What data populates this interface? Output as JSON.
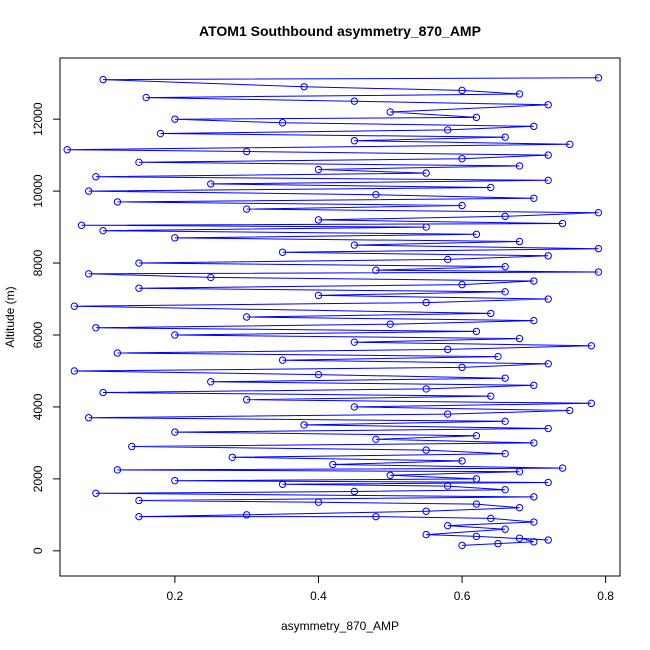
{
  "chart_data": {
    "type": "line",
    "title": "ATOM1 Southbound asymmetry_870_AMP",
    "xlabel": "asymmetry_870_AMP",
    "ylabel": "Altitude (m)",
    "xlim": [
      0.04,
      0.82
    ],
    "ylim": [
      -700,
      13700
    ],
    "xticks": [
      0.2,
      0.4,
      0.6,
      0.8
    ],
    "yticks": [
      0,
      2000,
      4000,
      6000,
      8000,
      10000,
      12000
    ],
    "grid": false,
    "legend": "none",
    "series": [
      {
        "color": "#0000ff",
        "marker": "open-circle",
        "points": [
          [
            0.6,
            150
          ],
          [
            0.65,
            200
          ],
          [
            0.7,
            250
          ],
          [
            0.68,
            350
          ],
          [
            0.72,
            300
          ],
          [
            0.62,
            400
          ],
          [
            0.55,
            450
          ],
          [
            0.66,
            600
          ],
          [
            0.58,
            700
          ],
          [
            0.7,
            800
          ],
          [
            0.64,
            900
          ],
          [
            0.48,
            950
          ],
          [
            0.15,
            950
          ],
          [
            0.3,
            1000
          ],
          [
            0.55,
            1100
          ],
          [
            0.68,
            1200
          ],
          [
            0.62,
            1300
          ],
          [
            0.4,
            1350
          ],
          [
            0.15,
            1400
          ],
          [
            0.7,
            1500
          ],
          [
            0.09,
            1600
          ],
          [
            0.45,
            1650
          ],
          [
            0.66,
            1700
          ],
          [
            0.58,
            1800
          ],
          [
            0.35,
            1850
          ],
          [
            0.72,
            1900
          ],
          [
            0.2,
            1950
          ],
          [
            0.62,
            2000
          ],
          [
            0.5,
            2100
          ],
          [
            0.68,
            2200
          ],
          [
            0.12,
            2250
          ],
          [
            0.74,
            2300
          ],
          [
            0.42,
            2400
          ],
          [
            0.6,
            2500
          ],
          [
            0.28,
            2600
          ],
          [
            0.66,
            2700
          ],
          [
            0.55,
            2800
          ],
          [
            0.14,
            2900
          ],
          [
            0.7,
            3000
          ],
          [
            0.48,
            3100
          ],
          [
            0.62,
            3200
          ],
          [
            0.2,
            3300
          ],
          [
            0.72,
            3400
          ],
          [
            0.38,
            3500
          ],
          [
            0.66,
            3600
          ],
          [
            0.08,
            3700
          ],
          [
            0.58,
            3800
          ],
          [
            0.75,
            3900
          ],
          [
            0.45,
            4000
          ],
          [
            0.78,
            4100
          ],
          [
            0.3,
            4200
          ],
          [
            0.64,
            4300
          ],
          [
            0.1,
            4400
          ],
          [
            0.55,
            4500
          ],
          [
            0.7,
            4600
          ],
          [
            0.25,
            4700
          ],
          [
            0.66,
            4800
          ],
          [
            0.4,
            4900
          ],
          [
            0.06,
            5000
          ],
          [
            0.6,
            5100
          ],
          [
            0.72,
            5200
          ],
          [
            0.35,
            5300
          ],
          [
            0.65,
            5400
          ],
          [
            0.12,
            5500
          ],
          [
            0.58,
            5600
          ],
          [
            0.78,
            5700
          ],
          [
            0.45,
            5800
          ],
          [
            0.68,
            5900
          ],
          [
            0.2,
            6000
          ],
          [
            0.62,
            6100
          ],
          [
            0.09,
            6200
          ],
          [
            0.5,
            6300
          ],
          [
            0.7,
            6400
          ],
          [
            0.3,
            6500
          ],
          [
            0.64,
            6600
          ],
          [
            0.06,
            6800
          ],
          [
            0.55,
            6900
          ],
          [
            0.72,
            7000
          ],
          [
            0.4,
            7100
          ],
          [
            0.66,
            7200
          ],
          [
            0.15,
            7300
          ],
          [
            0.6,
            7400
          ],
          [
            0.7,
            7500
          ],
          [
            0.25,
            7600
          ],
          [
            0.08,
            7700
          ],
          [
            0.79,
            7750
          ],
          [
            0.48,
            7800
          ],
          [
            0.66,
            7900
          ],
          [
            0.15,
            8000
          ],
          [
            0.58,
            8100
          ],
          [
            0.72,
            8200
          ],
          [
            0.35,
            8300
          ],
          [
            0.79,
            8400
          ],
          [
            0.45,
            8500
          ],
          [
            0.68,
            8600
          ],
          [
            0.2,
            8700
          ],
          [
            0.62,
            8800
          ],
          [
            0.1,
            8900
          ],
          [
            0.55,
            9000
          ],
          [
            0.07,
            9050
          ],
          [
            0.74,
            9100
          ],
          [
            0.4,
            9200
          ],
          [
            0.66,
            9300
          ],
          [
            0.79,
            9400
          ],
          [
            0.3,
            9500
          ],
          [
            0.6,
            9600
          ],
          [
            0.12,
            9700
          ],
          [
            0.7,
            9800
          ],
          [
            0.48,
            9900
          ],
          [
            0.08,
            10000
          ],
          [
            0.64,
            10100
          ],
          [
            0.25,
            10200
          ],
          [
            0.72,
            10300
          ],
          [
            0.09,
            10400
          ],
          [
            0.55,
            10500
          ],
          [
            0.4,
            10600
          ],
          [
            0.68,
            10700
          ],
          [
            0.15,
            10800
          ],
          [
            0.6,
            10900
          ],
          [
            0.72,
            11000
          ],
          [
            0.3,
            11100
          ],
          [
            0.05,
            11150
          ],
          [
            0.75,
            11300
          ],
          [
            0.45,
            11400
          ],
          [
            0.66,
            11500
          ],
          [
            0.18,
            11600
          ],
          [
            0.58,
            11700
          ],
          [
            0.7,
            11800
          ],
          [
            0.35,
            11900
          ],
          [
            0.2,
            12000
          ],
          [
            0.62,
            12050
          ],
          [
            0.5,
            12200
          ],
          [
            0.72,
            12400
          ],
          [
            0.45,
            12500
          ],
          [
            0.16,
            12600
          ],
          [
            0.68,
            12700
          ],
          [
            0.6,
            12800
          ],
          [
            0.38,
            12900
          ],
          [
            0.1,
            13100
          ],
          [
            0.79,
            13150
          ]
        ]
      }
    ]
  }
}
